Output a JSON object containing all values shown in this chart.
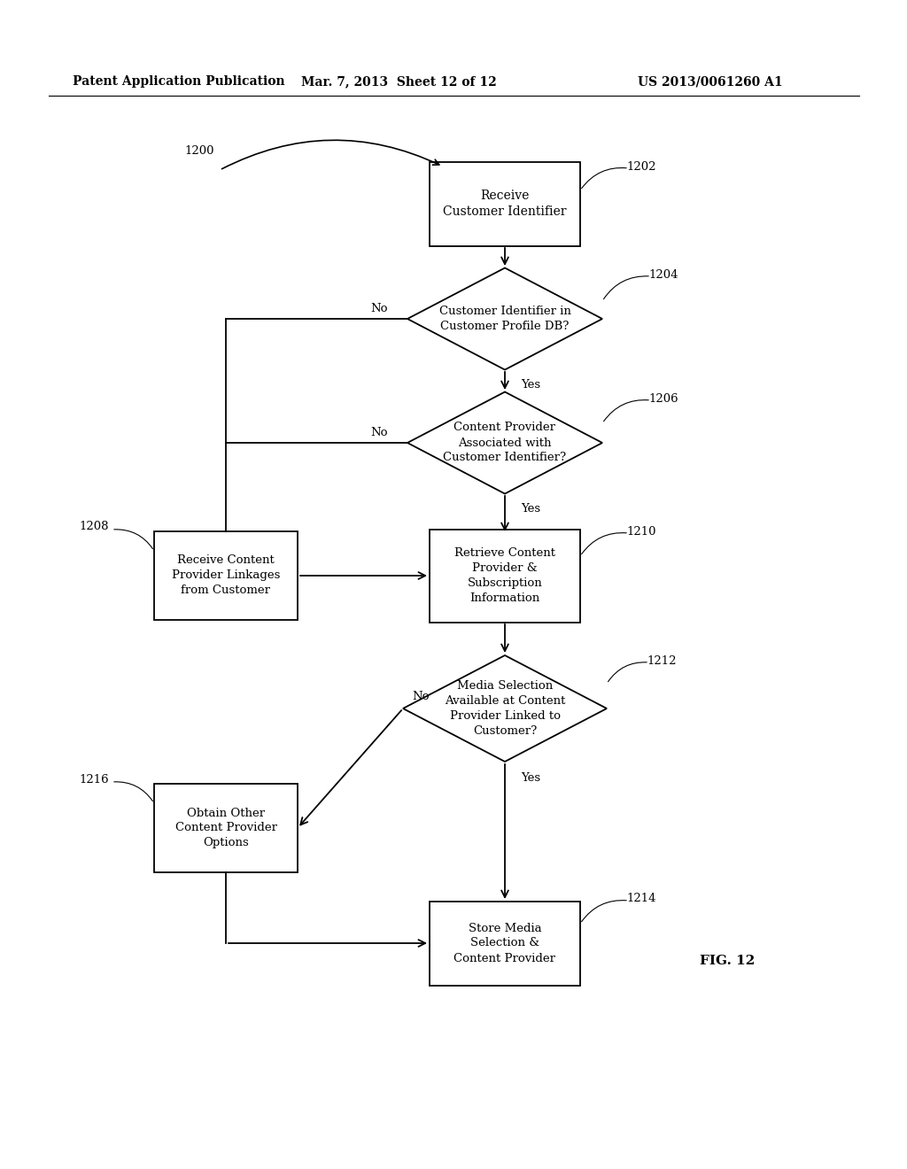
{
  "bg_color": "#ffffff",
  "header_left": "Patent Application Publication",
  "header_mid": "Mar. 7, 2013  Sheet 12 of 12",
  "header_right": "US 2013/0061260 A1",
  "fig_label": "FIG. 12",
  "start_label": "1200",
  "ref1202": "1202",
  "ref1204": "1204",
  "ref1206": "1206",
  "ref1208": "1208",
  "ref1210": "1210",
  "ref1212": "1212",
  "ref1214": "1214",
  "ref1216": "1216",
  "label1202": "Receive\nCustomer Identifier",
  "label1204": "Customer Identifier in\nCustomer Profile DB?",
  "label1206": "Content Provider\nAssociated with\nCustomer Identifier?",
  "label1208": "Receive Content\nProvider Linkages\nfrom Customer",
  "label1210": "Retrieve Content\nProvider &\nSubscription\nInformation",
  "label1212": "Media Selection\nAvailable at Content\nProvider Linked to\nCustomer?",
  "label1216": "Obtain Other\nContent Provider\nOptions",
  "label1214": "Store Media\nSelection &\nContent Provider",
  "yes": "Yes",
  "no": "No"
}
